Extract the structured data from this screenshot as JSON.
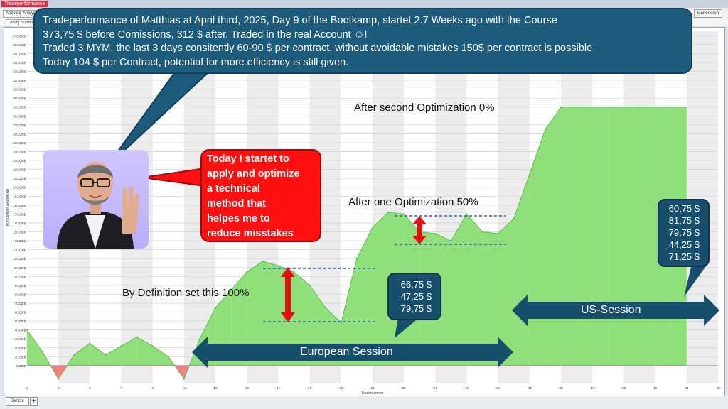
{
  "app": {
    "title": "Tradeperformance",
    "toolbar": {
      "display_label": "Anzeige",
      "analysis_label": "Analyse",
      "generate_label": "Generieren"
    },
    "subtabs": {
      "graph": "Graph",
      "summary": "Summe"
    },
    "bottom": {
      "sheet_tab": "Bericht",
      "add_tab": "+"
    }
  },
  "chart_data": {
    "type": "area",
    "x": [
      1,
      2,
      3,
      4,
      5,
      6,
      7,
      8,
      9,
      10,
      11,
      12,
      13,
      14,
      15,
      16,
      17,
      18,
      19,
      20,
      21,
      22,
      23,
      24,
      25,
      26,
      27,
      28,
      29,
      30,
      31,
      32,
      33,
      34,
      35,
      36,
      37,
      38,
      39,
      40,
      41,
      42,
      43
    ],
    "y": [
      40,
      15,
      -15,
      12,
      25,
      12,
      22,
      32,
      22,
      10,
      -15,
      30,
      65,
      85,
      105,
      117,
      112,
      105,
      90,
      65,
      48,
      120,
      155,
      172,
      170,
      150,
      148,
      140,
      170,
      150,
      148,
      165,
      215,
      265,
      290,
      290,
      290,
      290,
      290,
      290,
      290,
      290,
      290
    ],
    "x_ticks": [
      1,
      3,
      5,
      7,
      9,
      11,
      13,
      15,
      17,
      19,
      21,
      23,
      25,
      27,
      29,
      31,
      33,
      35,
      37,
      39,
      41,
      43,
      45
    ],
    "xlabel": "Tradenummer",
    "ylabel": "Kumulativer Gewinn ($)",
    "ylim": [
      -20,
      375
    ],
    "y_ticks": [
      0,
      10,
      20,
      30,
      40,
      50,
      60,
      70,
      80,
      90,
      100,
      110,
      120,
      130,
      140,
      150,
      160,
      170,
      180,
      190,
      200,
      210,
      220,
      230,
      240,
      250,
      260,
      270,
      280,
      290,
      300,
      310,
      320,
      330,
      340,
      350,
      360,
      370
    ],
    "y_tick_suffix": ",00 $",
    "positive_color": "#8fe07a",
    "negative_color": "#f08080",
    "grid": true
  },
  "bubble": {
    "lines": [
      "Tradeperformance of Matthias at April third, 2025, Day 9 of the Bootkamp, startet 2.7 Weeks ago with the Course",
      "373,75 $ before Comissions, 312 $ after. Traded in the real Account ☺!",
      "Traded 3 MYM, the last 3 days consitently 60-90 $ per contract, without avoidable mistakes 150$ per contract is possible.",
      "Today 104 $ per Contract, potential for more efficiency is still given."
    ]
  },
  "red_callout": {
    "lines": [
      "Today I startet to",
      "apply and optimize",
      "a technical",
      "method that",
      "helpes me to",
      "reduce misstakes"
    ]
  },
  "notes": {
    "after_second": "After second Optimization 0%",
    "after_one": "After one Optimization 50%",
    "by_definition": "By Definition set this 100%"
  },
  "eu_values": [
    "66,75 $",
    "47,25 $",
    "79,75 $"
  ],
  "us_values": [
    "60,75 $",
    "81,75 $",
    "79,75 $",
    "44,25 $",
    "71,25 $"
  ],
  "sessions": {
    "europe": "European Session",
    "us": "US-Session"
  },
  "colors": {
    "bubble_bg": "#1d5b7c",
    "callout_red": "#ff1010",
    "arrow_navy": "#164e6b",
    "accent_red": "#e01010"
  }
}
